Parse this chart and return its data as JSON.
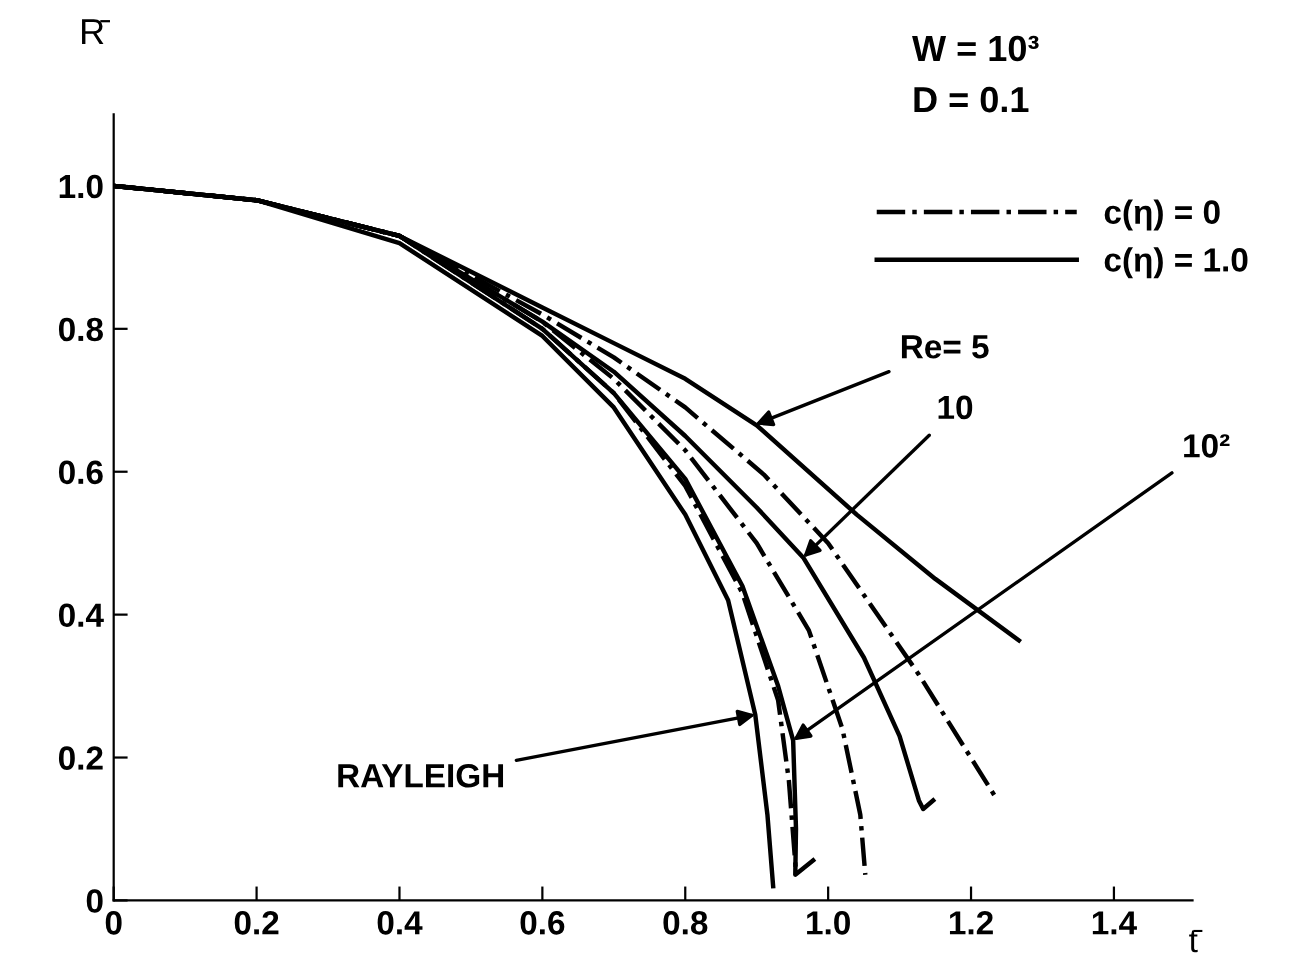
{
  "chart_data": {
    "type": "line",
    "xlabel": "t̄",
    "ylabel": "R̄",
    "xlim": [
      0,
      1.51
    ],
    "ylim": [
      0,
      1.1
    ],
    "xticks": [
      0,
      0.2,
      0.4,
      0.6,
      0.8,
      {
        "value": 1.0,
        "label": "1.0"
      },
      1.2,
      1.4
    ],
    "yticks": [
      0,
      0.2,
      0.4,
      0.6,
      0.8,
      {
        "value": 1.0,
        "label": "1.0"
      }
    ],
    "grid": false,
    "legend": "top right",
    "marker": "none",
    "series": [
      {
        "name": "c(η) = 0",
        "color": "#000000",
        "line_style": "dashdot",
        "x": [
          0,
          0.2,
          0.4,
          0.6,
          0.7,
          0.8,
          0.91,
          1.0,
          1.127,
          1.234
        ],
        "values": [
          1.0,
          0.98,
          0.93,
          0.82,
          0.76,
          0.69,
          0.596,
          0.5,
          0.316,
          0.145
        ]
      },
      {
        "name": "c(η) = 1.0",
        "color": "#000000",
        "line_style": "solid",
        "x": [
          0,
          0.2,
          0.4,
          0.6,
          0.7,
          0.8,
          0.9,
          1.04,
          1.15,
          1.267
        ],
        "values": [
          1.0,
          0.98,
          0.93,
          0.83,
          0.78,
          0.73,
          0.665,
          0.54,
          0.45,
          0.364
        ]
      },
      {
        "color": "#000000",
        "line_style": "dashdot",
        "x": [
          0,
          0.2,
          0.4,
          0.6,
          0.7,
          0.8,
          0.9,
          0.973,
          1.02,
          1.045,
          1.052
        ],
        "values": [
          1.0,
          0.98,
          0.93,
          0.81,
          0.73,
          0.63,
          0.5,
          0.378,
          0.24,
          0.12,
          0.036
        ]
      },
      {
        "color": "#000000",
        "line_style": "solid",
        "x": [
          0,
          0.2,
          0.4,
          0.6,
          0.7,
          0.8,
          0.9,
          0.965,
          1.05,
          1.1,
          1.127,
          1.133,
          1.147
        ],
        "values": [
          1.0,
          0.98,
          0.93,
          0.81,
          0.74,
          0.65,
          0.55,
          0.48,
          0.34,
          0.23,
          0.14,
          0.128,
          0.14
        ]
      },
      {
        "color": "#000000",
        "line_style": "dashdot",
        "x": [
          0,
          0.2,
          0.4,
          0.6,
          0.7,
          0.8,
          0.88,
          0.93,
          0.945,
          0.955
        ],
        "values": [
          1.0,
          0.98,
          0.93,
          0.8,
          0.71,
          0.58,
          0.43,
          0.28,
          0.168,
          0.04
        ]
      },
      {
        "color": "#000000",
        "line_style": "solid",
        "x": [
          0,
          0.2,
          0.4,
          0.6,
          0.7,
          0.8,
          0.88,
          0.93,
          0.951,
          0.955,
          0.954,
          0.979
        ],
        "values": [
          1.0,
          0.98,
          0.93,
          0.8,
          0.71,
          0.59,
          0.44,
          0.3,
          0.224,
          0.1,
          0.036,
          0.056
        ]
      },
      {
        "color": "#000000",
        "line_style": "solid",
        "x": [
          0,
          0.2,
          0.4,
          0.6,
          0.7,
          0.8,
          0.86,
          0.898,
          0.915,
          0.923
        ],
        "values": [
          1.0,
          0.98,
          0.92,
          0.79,
          0.69,
          0.54,
          0.42,
          0.26,
          0.12,
          0.02
        ]
      }
    ],
    "annotations": [
      "W = 10³",
      "D = 0.1",
      {
        "text": "Re= 5",
        "x": 0.898,
        "y": 0.666
      },
      {
        "text": "10",
        "x": 0.965,
        "y": 0.48
      },
      {
        "text": "10²",
        "x": 0.951,
        "y": 0.224
      },
      {
        "text": "RAYLEIGH",
        "x": 0.898,
        "y": 0.26
      }
    ]
  }
}
